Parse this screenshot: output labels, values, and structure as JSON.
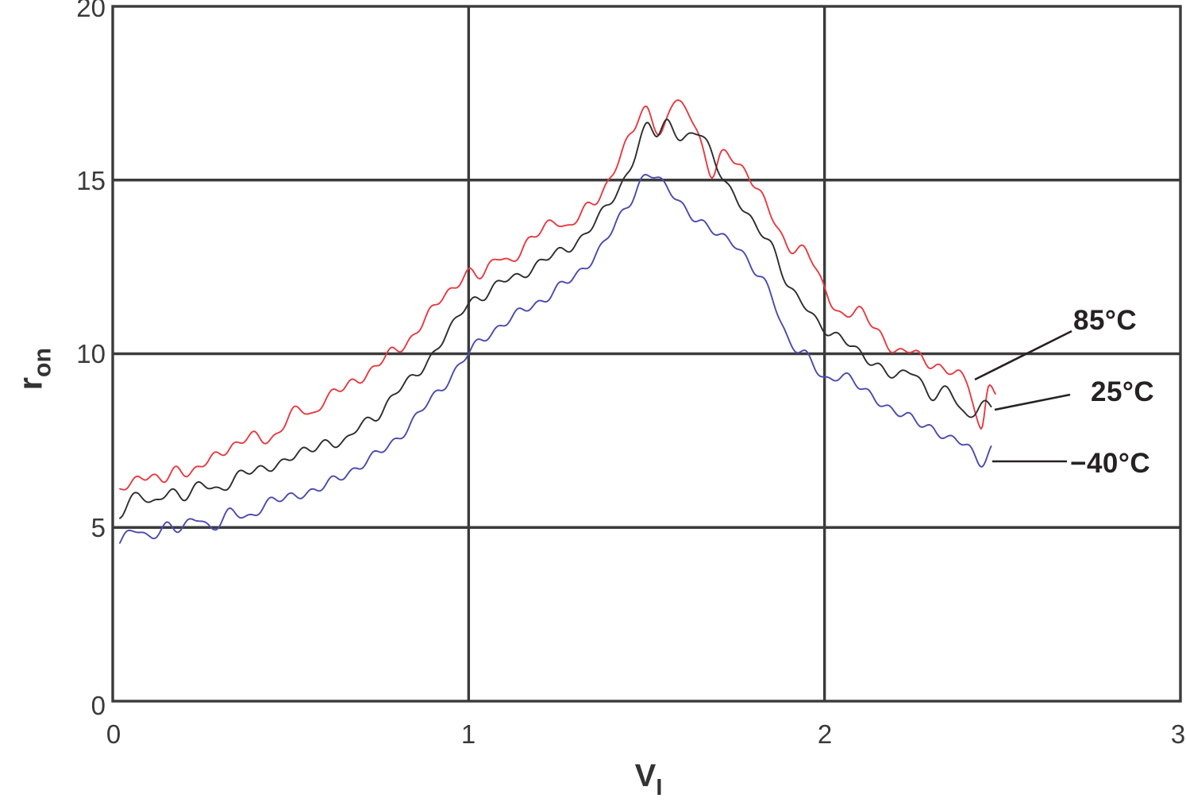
{
  "chart_data": {
    "type": "line",
    "title": "",
    "x_axis": {
      "label": "VI",
      "label_main": "V",
      "label_sub": "I",
      "min": 0,
      "max": 3,
      "tick_values": [
        0,
        1,
        2,
        3
      ],
      "tick_labels": [
        "0",
        "1",
        "2",
        "3"
      ]
    },
    "y_axis": {
      "label": "ron",
      "label_main": "r",
      "label_sub": "on",
      "min": 0,
      "max": 20,
      "tick_values": [
        20,
        15,
        10,
        5,
        0
      ],
      "tick_labels": [
        "20",
        "15",
        "10",
        "5",
        "0"
      ]
    },
    "grid": "on",
    "legend": {
      "position": "right-of-curves",
      "entries": [
        "85°C",
        "25°C",
        "−40°C"
      ]
    },
    "axis_color": "#3b3b3b",
    "series": [
      {
        "name": "85°C",
        "color": "#e63b42",
        "points": [
          [
            0.02,
            6.0
          ],
          [
            0.06,
            6.4
          ],
          [
            0.1,
            6.5
          ],
          [
            0.14,
            6.3
          ],
          [
            0.18,
            6.7
          ],
          [
            0.22,
            6.6
          ],
          [
            0.27,
            6.9
          ],
          [
            0.31,
            7.2
          ],
          [
            0.36,
            7.5
          ],
          [
            0.4,
            7.6
          ],
          [
            0.44,
            7.5
          ],
          [
            0.48,
            8.0
          ],
          [
            0.52,
            8.4
          ],
          [
            0.56,
            8.2
          ],
          [
            0.6,
            8.8
          ],
          [
            0.65,
            9.0
          ],
          [
            0.7,
            9.3
          ],
          [
            0.74,
            9.7
          ],
          [
            0.78,
            10.0
          ],
          [
            0.82,
            10.2
          ],
          [
            0.86,
            10.8
          ],
          [
            0.9,
            11.3
          ],
          [
            0.95,
            11.8
          ],
          [
            1.0,
            12.4
          ],
          [
            1.04,
            12.2
          ],
          [
            1.08,
            12.8
          ],
          [
            1.12,
            12.7
          ],
          [
            1.16,
            13.1
          ],
          [
            1.2,
            13.5
          ],
          [
            1.24,
            13.9
          ],
          [
            1.28,
            13.6
          ],
          [
            1.33,
            14.2
          ],
          [
            1.37,
            14.6
          ],
          [
            1.42,
            15.5
          ],
          [
            1.46,
            16.4
          ],
          [
            1.5,
            17.1
          ],
          [
            1.54,
            16.3
          ],
          [
            1.58,
            17.3
          ],
          [
            1.61,
            17.0
          ],
          [
            1.64,
            16.6
          ],
          [
            1.68,
            15.1
          ],
          [
            1.71,
            15.7
          ],
          [
            1.75,
            15.6
          ],
          [
            1.8,
            14.9
          ],
          [
            1.85,
            14.0
          ],
          [
            1.9,
            13.1
          ],
          [
            1.95,
            12.9
          ],
          [
            2.0,
            11.9
          ],
          [
            2.05,
            11.1
          ],
          [
            2.1,
            11.2
          ],
          [
            2.15,
            10.7
          ],
          [
            2.2,
            10.0
          ],
          [
            2.25,
            10.1
          ],
          [
            2.3,
            9.7
          ],
          [
            2.36,
            9.4
          ],
          [
            2.4,
            9.3
          ],
          [
            2.44,
            7.8
          ],
          [
            2.46,
            9.1
          ],
          [
            2.48,
            8.7
          ]
        ],
        "noise": {
          "a1": 0.1,
          "w1": 0.055,
          "p1": 0.3,
          "a2": 0.07,
          "w2": 0.13,
          "p2": 1.2
        }
      },
      {
        "name": "25°C",
        "color": "#2d2d2d",
        "points": [
          [
            0.02,
            5.4
          ],
          [
            0.07,
            6.0
          ],
          [
            0.11,
            5.6
          ],
          [
            0.16,
            6.1
          ],
          [
            0.2,
            5.9
          ],
          [
            0.25,
            6.2
          ],
          [
            0.3,
            6.1
          ],
          [
            0.35,
            6.5
          ],
          [
            0.4,
            6.6
          ],
          [
            0.45,
            6.8
          ],
          [
            0.5,
            7.0
          ],
          [
            0.55,
            7.2
          ],
          [
            0.6,
            7.5
          ],
          [
            0.65,
            7.4
          ],
          [
            0.7,
            8.0
          ],
          [
            0.75,
            8.3
          ],
          [
            0.8,
            8.9
          ],
          [
            0.85,
            9.4
          ],
          [
            0.9,
            10.0
          ],
          [
            0.95,
            10.7
          ],
          [
            1.0,
            11.5
          ],
          [
            1.05,
            11.7
          ],
          [
            1.1,
            12.1
          ],
          [
            1.15,
            12.3
          ],
          [
            1.2,
            12.6
          ],
          [
            1.25,
            12.9
          ],
          [
            1.3,
            13.2
          ],
          [
            1.35,
            13.7
          ],
          [
            1.4,
            14.4
          ],
          [
            1.45,
            15.3
          ],
          [
            1.5,
            16.5
          ],
          [
            1.53,
            16.3
          ],
          [
            1.56,
            16.7
          ],
          [
            1.6,
            16.2
          ],
          [
            1.65,
            16.3
          ],
          [
            1.7,
            15.4
          ],
          [
            1.75,
            14.5
          ],
          [
            1.8,
            13.7
          ],
          [
            1.85,
            13.2
          ],
          [
            1.9,
            11.9
          ],
          [
            1.95,
            11.3
          ],
          [
            2.0,
            10.75
          ],
          [
            2.05,
            10.4
          ],
          [
            2.1,
            10.0
          ],
          [
            2.15,
            9.7
          ],
          [
            2.2,
            9.3
          ],
          [
            2.25,
            9.5
          ],
          [
            2.3,
            8.8
          ],
          [
            2.35,
            8.9
          ],
          [
            2.4,
            8.2
          ],
          [
            2.44,
            8.6
          ],
          [
            2.47,
            8.4
          ]
        ],
        "noise": {
          "a1": 0.1,
          "w1": 0.06,
          "p1": 2.1,
          "a2": 0.07,
          "w2": 0.14,
          "p2": 3.0
        }
      },
      {
        "name": "−40°C",
        "color": "#4a4aae",
        "points": [
          [
            0.02,
            4.6
          ],
          [
            0.06,
            4.9
          ],
          [
            0.1,
            4.7
          ],
          [
            0.15,
            5.1
          ],
          [
            0.19,
            4.9
          ],
          [
            0.24,
            5.3
          ],
          [
            0.28,
            5.0
          ],
          [
            0.33,
            5.4
          ],
          [
            0.38,
            5.3
          ],
          [
            0.43,
            5.7
          ],
          [
            0.48,
            5.8
          ],
          [
            0.53,
            6.0
          ],
          [
            0.58,
            6.1
          ],
          [
            0.63,
            6.4
          ],
          [
            0.68,
            6.7
          ],
          [
            0.73,
            7.0
          ],
          [
            0.78,
            7.4
          ],
          [
            0.83,
            7.9
          ],
          [
            0.88,
            8.5
          ],
          [
            0.93,
            9.1
          ],
          [
            1.0,
            10.0
          ],
          [
            1.05,
            10.5
          ],
          [
            1.1,
            10.9
          ],
          [
            1.15,
            11.2
          ],
          [
            1.2,
            11.5
          ],
          [
            1.25,
            11.9
          ],
          [
            1.3,
            12.2
          ],
          [
            1.35,
            12.8
          ],
          [
            1.4,
            13.5
          ],
          [
            1.45,
            14.3
          ],
          [
            1.5,
            15.2
          ],
          [
            1.55,
            14.8
          ],
          [
            1.6,
            14.3
          ],
          [
            1.65,
            13.8
          ],
          [
            1.7,
            13.4
          ],
          [
            1.75,
            13.2
          ],
          [
            1.8,
            12.4
          ],
          [
            1.85,
            11.7
          ],
          [
            1.9,
            10.4
          ],
          [
            1.95,
            9.9
          ],
          [
            2.0,
            9.3
          ],
          [
            2.05,
            9.4
          ],
          [
            2.1,
            9.0
          ],
          [
            2.15,
            8.7
          ],
          [
            2.2,
            8.3
          ],
          [
            2.25,
            8.1
          ],
          [
            2.3,
            7.9
          ],
          [
            2.35,
            7.5
          ],
          [
            2.4,
            7.4
          ],
          [
            2.44,
            6.9
          ],
          [
            2.47,
            7.25
          ]
        ],
        "noise": {
          "a1": 0.1,
          "w1": 0.058,
          "p1": 4.0,
          "a2": 0.07,
          "w2": 0.135,
          "p2": 4.8
        }
      }
    ]
  }
}
